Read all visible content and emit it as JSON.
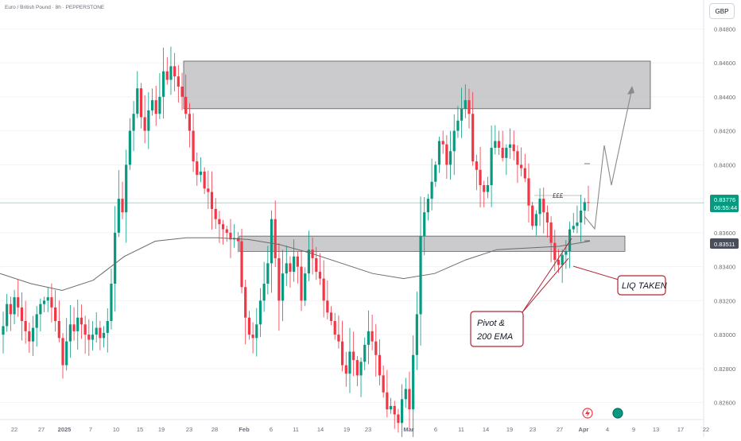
{
  "header": {
    "title": "Euro / British Pound · 8h · PEPPERSTONE",
    "currency": "GBP"
  },
  "price_badges": {
    "current_price": "0.83776",
    "countdown": "06:55:44",
    "level_price": "0.83511"
  },
  "annotations": {
    "liq_label": "LIQ TAKEN",
    "pivot_label_line1": "Pivot &",
    "pivot_label_line2": "200 EMA",
    "pound_marks": "£££"
  },
  "colors": {
    "up": "#089981",
    "down": "#f23645",
    "ema": "#6b6b6b",
    "zone_fill": "#b9b9bd",
    "zone_stroke": "#5a5a5e",
    "current_badge": "#089981",
    "level_badge": "#4a4e5a",
    "annotation_red": "#b22633",
    "projection": "#8a8a8a"
  },
  "chart_data": {
    "type": "candlestick",
    "title": "Euro / British Pound · 8h · PEPPERSTONE",
    "currency": "GBP",
    "y_ticks": [
      0.826,
      0.828,
      0.83,
      0.832,
      0.834,
      0.836,
      0.838,
      0.84,
      0.842,
      0.844,
      0.846,
      0.848
    ],
    "ylim": [
      0.825,
      0.8497
    ],
    "x_ticks": [
      "22",
      "27",
      "2025",
      "7",
      "10",
      "15",
      "19",
      "23",
      "28",
      "Feb",
      "6",
      "11",
      "14",
      "19",
      "23",
      "Mar",
      "6",
      "11",
      "14",
      "19",
      "23",
      "27",
      "Apr",
      "4",
      "9",
      "13",
      "17",
      "22"
    ],
    "current_price": 0.83776,
    "marked_level": 0.83511,
    "zones": [
      {
        "name": "supply",
        "from": 0.8433,
        "to": 0.8461
      },
      {
        "name": "demand",
        "from": 0.8349,
        "to": 0.8358
      }
    ],
    "closes": [
      0.8305,
      0.8318,
      0.8312,
      0.8322,
      0.8316,
      0.8308,
      0.8302,
      0.8296,
      0.8304,
      0.8312,
      0.8318,
      0.832,
      0.8322,
      0.8316,
      0.8308,
      0.8298,
      0.8282,
      0.8296,
      0.8306,
      0.8302,
      0.831,
      0.8306,
      0.83,
      0.8297,
      0.83,
      0.8304,
      0.8298,
      0.8301,
      0.8308,
      0.833,
      0.836,
      0.838,
      0.8372,
      0.84,
      0.842,
      0.843,
      0.8445,
      0.8428,
      0.842,
      0.8432,
      0.8438,
      0.843,
      0.844,
      0.8455,
      0.845,
      0.8458,
      0.8452,
      0.8446,
      0.844,
      0.843,
      0.842,
      0.8402,
      0.8394,
      0.8396,
      0.8386,
      0.8384,
      0.8374,
      0.8368,
      0.8365,
      0.8362,
      0.836,
      0.8356,
      0.8357,
      0.8355,
      0.8328,
      0.831,
      0.83,
      0.8298,
      0.8306,
      0.832,
      0.833,
      0.8342,
      0.8368,
      0.8345,
      0.832,
      0.8336,
      0.8342,
      0.8337,
      0.8346,
      0.834,
      0.832,
      0.8336,
      0.835,
      0.8345,
      0.8337,
      0.8333,
      0.832,
      0.8313,
      0.8308,
      0.83,
      0.8296,
      0.8282,
      0.8277,
      0.829,
      0.8285,
      0.8276,
      0.8284,
      0.8294,
      0.8302,
      0.8296,
      0.8288,
      0.8276,
      0.8266,
      0.8256,
      0.8258,
      0.8253,
      0.8248,
      0.8262,
      0.8268,
      0.8256,
      0.8288,
      0.8312,
      0.8358,
      0.8372,
      0.838,
      0.839,
      0.84,
      0.8414,
      0.8412,
      0.84,
      0.8408,
      0.842,
      0.8426,
      0.8433,
      0.8438,
      0.843,
      0.8402,
      0.8397,
      0.8388,
      0.8384,
      0.8388,
      0.841,
      0.8414,
      0.841,
      0.8404,
      0.841,
      0.8412,
      0.8408,
      0.84,
      0.8398,
      0.8392,
      0.8376,
      0.8364,
      0.8371,
      0.838,
      0.8372,
      0.8366,
      0.8354,
      0.8344,
      0.8341,
      0.8347,
      0.8349,
      0.8362,
      0.8364,
      0.8366,
      0.8373,
      0.8378,
      0.83776
    ],
    "ema200": [
      0.8336,
      0.833,
      0.8326,
      0.8332,
      0.8346,
      0.8355,
      0.8357,
      0.8357,
      0.8356,
      0.8353,
      0.8348,
      0.8342,
      0.8336,
      0.8333,
      0.8336,
      0.8344,
      0.835,
      0.8351,
      0.8352,
      0.8355
    ]
  }
}
